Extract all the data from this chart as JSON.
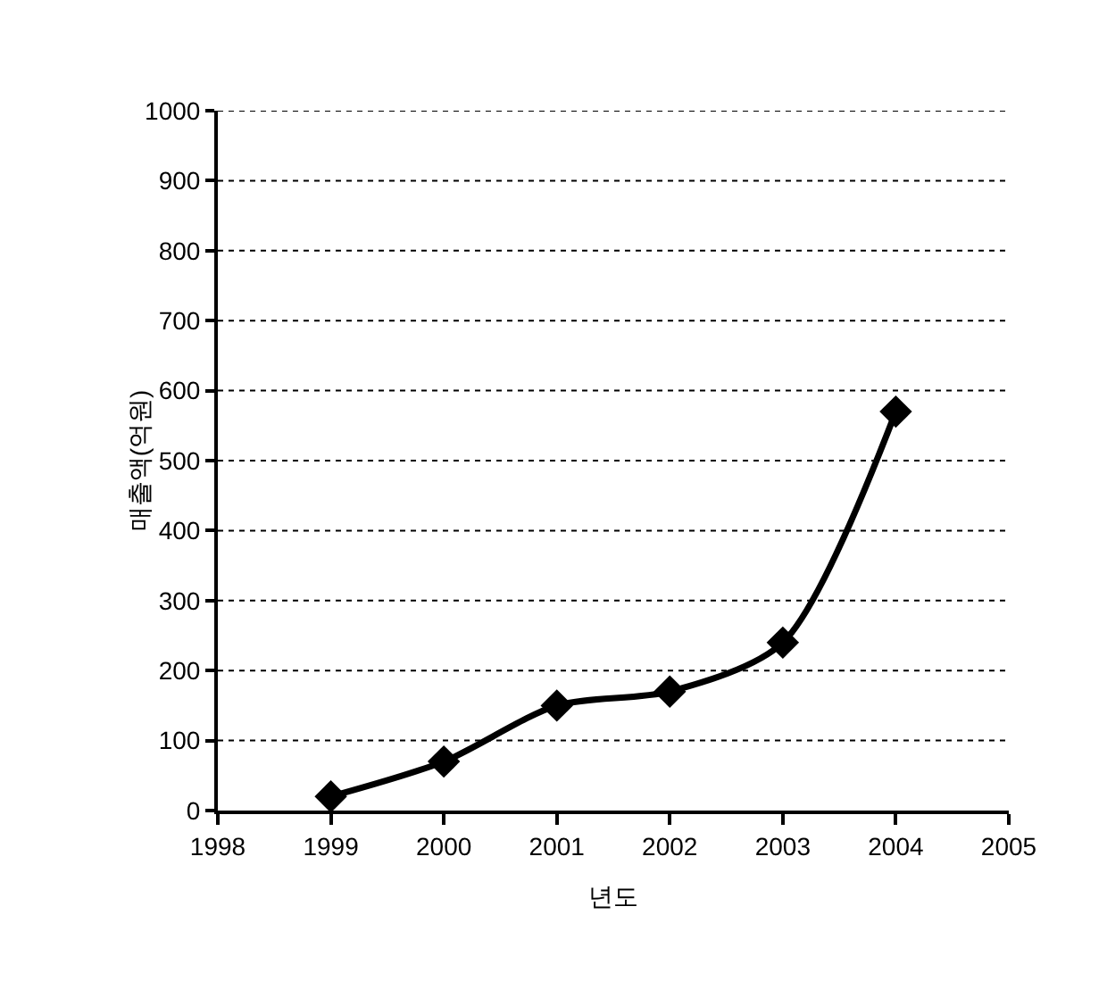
{
  "chart_data": {
    "type": "line",
    "xlabel": "년도",
    "ylabel": "매출액(억원)",
    "x": [
      1999,
      2000,
      2001,
      2002,
      2003,
      2004
    ],
    "series": [
      {
        "color": "#000000",
        "values": [
          20,
          70,
          150,
          170,
          240,
          570
        ]
      }
    ],
    "xlim": [
      1998,
      2005
    ],
    "xticks": [
      1998,
      1999,
      2000,
      2001,
      2002,
      2003,
      2004,
      2005
    ],
    "ylim": [
      0,
      1000
    ],
    "yticks": [
      0,
      100,
      200,
      300,
      400,
      500,
      600,
      700,
      800,
      900,
      1000
    ],
    "grid": "y",
    "marker": "diamond",
    "line_style": "solid"
  }
}
